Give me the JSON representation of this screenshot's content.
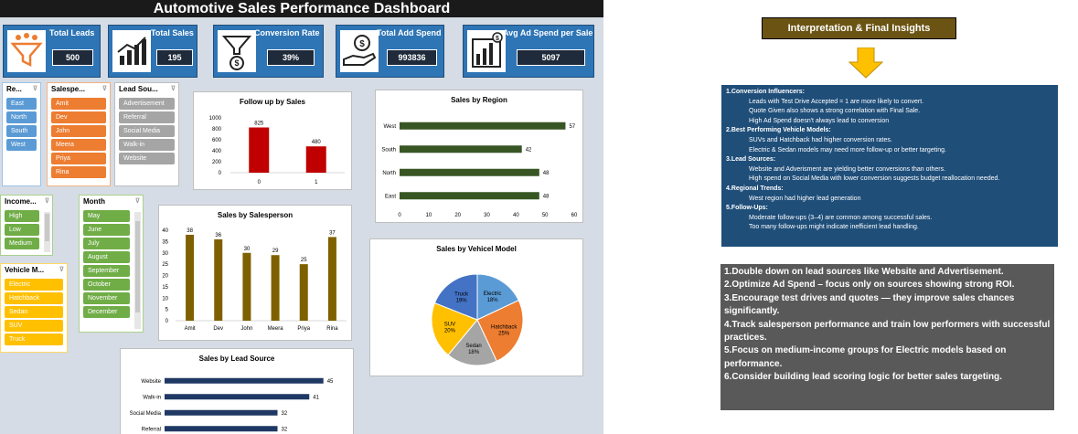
{
  "dashboard": {
    "title": "Automotive Sales Performance Dashboard",
    "kpis": [
      {
        "label": "Total Leads",
        "value": "500",
        "icon": "funnel-people-icon"
      },
      {
        "label": "Total Sales",
        "value": "195",
        "icon": "bar-growth-icon"
      },
      {
        "label": "Conversion Rate",
        "value": "39%",
        "icon": "funnel-dollar-icon"
      },
      {
        "label": "Total Add Spend",
        "value": "993836",
        "icon": "hand-money-icon"
      },
      {
        "label": "Avg Ad Spend per Sale",
        "value": "5097",
        "icon": "chart-dollar-icon"
      }
    ]
  },
  "slicers": {
    "region": {
      "title": "Re...",
      "items": [
        "East",
        "North",
        "South",
        "West"
      ]
    },
    "salesperson": {
      "title": "Salespe...",
      "items": [
        "Amit",
        "Dev",
        "John",
        "Meera",
        "Priya",
        "Rina"
      ]
    },
    "lead_source": {
      "title": "Lead Sou...",
      "items": [
        "Advertisement",
        "Referral",
        "Social Media",
        "Walk-in",
        "Website"
      ]
    },
    "income": {
      "title": "Income...",
      "items": [
        "High",
        "Low",
        "Medium"
      ]
    },
    "month": {
      "title": "Month",
      "items": [
        "May",
        "June",
        "July",
        "August",
        "September",
        "October",
        "November",
        "December"
      ]
    },
    "vehicle_model": {
      "title": "Vehicle M...",
      "items": [
        "Electric",
        "Hatchback",
        "Sedan",
        "SUV",
        "Truck"
      ]
    }
  },
  "chart_data": [
    {
      "id": "followup",
      "type": "bar",
      "title": "Follow up by Sales",
      "categories": [
        "0",
        "1"
      ],
      "values": [
        825,
        480
      ],
      "ylim": [
        0,
        1000
      ],
      "yticks": [
        0,
        200,
        400,
        600,
        800,
        1000
      ],
      "colors": {
        "bar": "#c00000"
      }
    },
    {
      "id": "region",
      "type": "bar",
      "orientation": "horizontal",
      "title": "Sales by Region",
      "categories": [
        "West",
        "South",
        "North",
        "East"
      ],
      "values": [
        57,
        42,
        48,
        48
      ],
      "xlim": [
        0,
        60
      ],
      "xticks": [
        0,
        10,
        20,
        30,
        40,
        50,
        60
      ],
      "colors": {
        "bar": "#375623"
      }
    },
    {
      "id": "salesperson",
      "type": "bar",
      "title": "Sales by Salesperson",
      "categories": [
        "Amit",
        "Dev",
        "John",
        "Meera",
        "Priya",
        "Rina"
      ],
      "values": [
        38,
        36,
        30,
        29,
        25,
        37
      ],
      "ylim": [
        0,
        40
      ],
      "yticks": [
        0,
        5,
        10,
        15,
        20,
        25,
        30,
        35,
        40
      ],
      "colors": {
        "bar": "#7f6000"
      }
    },
    {
      "id": "vehicle",
      "type": "pie",
      "title": "Sales by Vehicel Model",
      "slices": [
        {
          "label": "Electric",
          "pct": "18%",
          "value": 18,
          "color": "#5b9bd5"
        },
        {
          "label": "Hatchback",
          "pct": "25%",
          "value": 25,
          "color": "#ed7d31"
        },
        {
          "label": "Sedan",
          "pct": "18%",
          "value": 18,
          "color": "#a5a5a5"
        },
        {
          "label": "SUV",
          "pct": "20%",
          "value": 20,
          "color": "#ffc000"
        },
        {
          "label": "Truck",
          "pct": "19%",
          "value": 19,
          "color": "#4472c4"
        }
      ]
    },
    {
      "id": "leadsource",
      "type": "bar",
      "orientation": "horizontal",
      "title": "Sales by Lead Source",
      "categories": [
        "Website",
        "Walk-in",
        "Social Media",
        "Referral"
      ],
      "values": [
        45,
        41,
        32,
        32
      ],
      "xlim": [
        0,
        50
      ],
      "colors": {
        "bar": "#1f3864"
      }
    }
  ],
  "insights": {
    "title": "Interpretation & Final Insights",
    "interpretation": [
      {
        "type": "head",
        "text": "1.Conversion Influencers:"
      },
      {
        "type": "sub",
        "text": "Leads with Test Drive Accepted = 1 are more likely to convert."
      },
      {
        "type": "sub",
        "text": "Quote Given also shows a strong correlation with Final Sale."
      },
      {
        "type": "sub",
        "text": "High Ad Spend doesn't always lead to conversion"
      },
      {
        "type": "head",
        "text": "2.Best Performing Vehicle Models:"
      },
      {
        "type": "sub",
        "text": "SUVs and Hatchback had higher conversion rates."
      },
      {
        "type": "sub",
        "text": "Electric & Sedan models may need more follow-up or better targeting."
      },
      {
        "type": "head",
        "text": "3.Lead Sources:"
      },
      {
        "type": "sub",
        "text": "Website and Adverisment are yielding better conversions than others."
      },
      {
        "type": "sub",
        "text": "High spend on Social Media with lower conversion suggests budget reallocation needed."
      },
      {
        "type": "head",
        "text": "4.Regional Trends:"
      },
      {
        "type": "sub",
        "text": "West region had higher lead generation"
      },
      {
        "type": "head",
        "text": "5.Follow-Ups:"
      },
      {
        "type": "sub",
        "text": "Moderate follow-ups (3–4) are common among successful sales."
      },
      {
        "type": "sub",
        "text": "Too many follow-ups might indicate inefficient lead handling."
      }
    ],
    "recommendations": [
      "1.Double down on lead sources like Website and Advertisement.",
      "2.Optimize Ad Spend – focus only on sources showing strong ROI.",
      "3.Encourage test drives and quotes — they improve sales chances significantly.",
      "4.Track salesperson performance and train low performers with successful practices.",
      "5.Focus on medium-income groups for Electric  models based on performance.",
      "6.Consider building lead scoring logic for better sales targeting."
    ],
    "colors": {
      "title_bg": "#6b5413",
      "arrow": "#ffc000",
      "interp_bg": "#1f4e79",
      "rec_bg": "#595959"
    }
  }
}
